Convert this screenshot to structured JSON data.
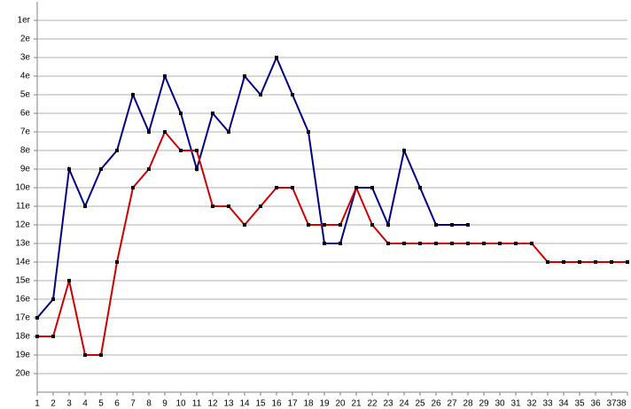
{
  "chart_data": {
    "type": "line",
    "categories": [
      "1",
      "2",
      "3",
      "4",
      "5",
      "6",
      "7",
      "8",
      "9",
      "10",
      "11",
      "12",
      "13",
      "14",
      "15",
      "16",
      "17",
      "18",
      "19",
      "20",
      "21",
      "22",
      "23",
      "24",
      "25",
      "26",
      "27",
      "28",
      "29",
      "30",
      "31",
      "32",
      "33",
      "34",
      "35",
      "36",
      "37",
      "38"
    ],
    "series": [
      {
        "color": "#000080",
        "values": [
          17,
          16,
          9,
          11,
          9,
          8,
          5,
          7,
          4,
          6,
          9,
          6,
          7,
          4,
          5,
          3,
          5,
          7,
          13,
          13,
          10,
          10,
          12,
          8,
          10,
          12,
          12,
          12,
          null,
          null,
          null,
          null,
          null,
          null,
          null,
          null,
          null,
          null
        ]
      },
      {
        "color": "#cc0000",
        "values": [
          18,
          18,
          15,
          19,
          19,
          14,
          10,
          9,
          7,
          8,
          8,
          11,
          11,
          12,
          11,
          10,
          10,
          12,
          12,
          12,
          10,
          12,
          13,
          13,
          13,
          13,
          13,
          13,
          13,
          13,
          13,
          13,
          14,
          14,
          14,
          14,
          14,
          14
        ]
      }
    ],
    "ylim": [
      21,
      0
    ],
    "yticks": [
      {
        "value": 1,
        "label": "1er"
      },
      {
        "value": 2,
        "label": "2e"
      },
      {
        "value": 3,
        "label": "3e"
      },
      {
        "value": 4,
        "label": "4e"
      },
      {
        "value": 5,
        "label": "5e"
      },
      {
        "value": 6,
        "label": "6e"
      },
      {
        "value": 7,
        "label": "7e"
      },
      {
        "value": 8,
        "label": "8e"
      },
      {
        "value": 9,
        "label": "9e"
      },
      {
        "value": 10,
        "label": "10e"
      },
      {
        "value": 11,
        "label": "11e"
      },
      {
        "value": 12,
        "label": "12e"
      },
      {
        "value": 13,
        "label": "13e"
      },
      {
        "value": 14,
        "label": "14e"
      },
      {
        "value": 15,
        "label": "15e"
      },
      {
        "value": 16,
        "label": "16e"
      },
      {
        "value": 17,
        "label": "17e"
      },
      {
        "value": 18,
        "label": "18e"
      },
      {
        "value": 19,
        "label": "19e"
      },
      {
        "value": 20,
        "label": "20e"
      }
    ],
    "grid": true,
    "marker_color": "#000000"
  }
}
